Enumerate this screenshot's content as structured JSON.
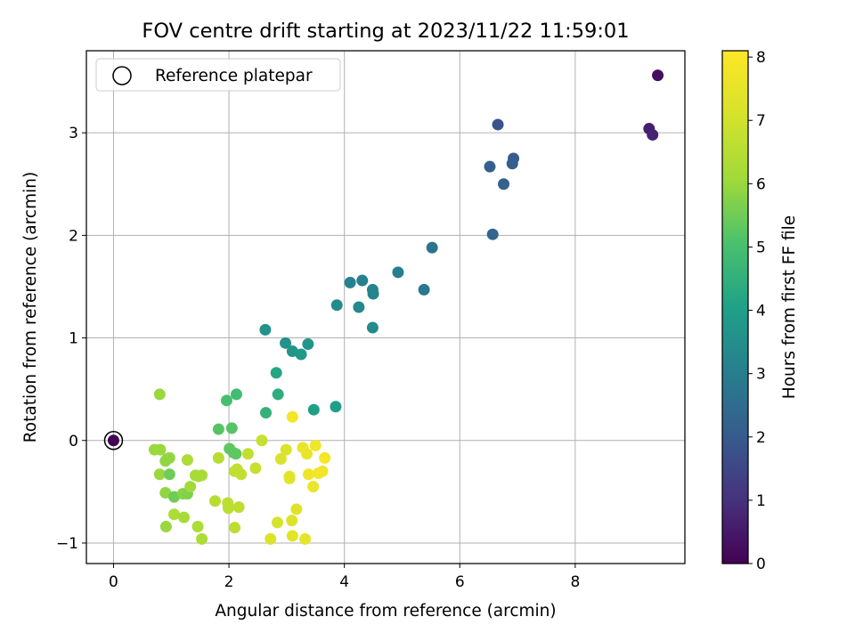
{
  "chart_data": {
    "type": "scatter",
    "title": "FOV centre drift starting at 2023/11/22 11:59:01",
    "xlabel": "Angular distance from reference (arcmin)",
    "ylabel": "Rotation from reference (arcmin)",
    "xlim": [
      -0.47,
      9.9
    ],
    "ylim": [
      -1.2,
      3.8
    ],
    "x_ticks": [
      0,
      2,
      4,
      6,
      8
    ],
    "y_ticks": [
      -1,
      0,
      1,
      2,
      3
    ],
    "x_tick_labels": [
      "0",
      "2",
      "4",
      "6",
      "8"
    ],
    "y_tick_labels": [
      "−1",
      "0",
      "1",
      "2",
      "3"
    ],
    "grid": true,
    "legend": {
      "placement": "top-left",
      "entries": [
        "Reference platepar"
      ]
    },
    "colorbar": {
      "label": "Hours from first FF file",
      "range": [
        0,
        8.1
      ],
      "ticks": [
        0,
        1,
        2,
        3,
        4,
        5,
        6,
        7,
        8
      ],
      "tick_labels": [
        "0",
        "1",
        "2",
        "3",
        "4",
        "5",
        "6",
        "7",
        "8"
      ],
      "colormap": "viridis"
    },
    "reference_point": {
      "x": 0,
      "y": 0,
      "hours": 0
    },
    "points": [
      {
        "x": 9.43,
        "y": 3.56,
        "hours": 0.3
      },
      {
        "x": 9.28,
        "y": 3.04,
        "hours": 0.6
      },
      {
        "x": 9.34,
        "y": 2.98,
        "hours": 0.7
      },
      {
        "x": 6.66,
        "y": 3.08,
        "hours": 1.8
      },
      {
        "x": 6.93,
        "y": 2.75,
        "hours": 2.0
      },
      {
        "x": 6.91,
        "y": 2.7,
        "hours": 2.1
      },
      {
        "x": 6.52,
        "y": 2.67,
        "hours": 2.1
      },
      {
        "x": 6.76,
        "y": 2.5,
        "hours": 2.2
      },
      {
        "x": 6.57,
        "y": 2.01,
        "hours": 2.3
      },
      {
        "x": 5.52,
        "y": 1.88,
        "hours": 2.7
      },
      {
        "x": 4.93,
        "y": 1.64,
        "hours": 3.0
      },
      {
        "x": 5.38,
        "y": 1.47,
        "hours": 2.8
      },
      {
        "x": 4.1,
        "y": 1.54,
        "hours": 3.1
      },
      {
        "x": 4.31,
        "y": 1.56,
        "hours": 3.1
      },
      {
        "x": 4.49,
        "y": 1.47,
        "hours": 3.2
      },
      {
        "x": 4.5,
        "y": 1.43,
        "hours": 3.2
      },
      {
        "x": 4.25,
        "y": 1.3,
        "hours": 3.3
      },
      {
        "x": 3.87,
        "y": 1.32,
        "hours": 3.4
      },
      {
        "x": 4.49,
        "y": 1.1,
        "hours": 3.4
      },
      {
        "x": 2.63,
        "y": 1.08,
        "hours": 3.6
      },
      {
        "x": 2.98,
        "y": 0.95,
        "hours": 3.6
      },
      {
        "x": 3.1,
        "y": 0.87,
        "hours": 3.7
      },
      {
        "x": 3.25,
        "y": 0.84,
        "hours": 3.8
      },
      {
        "x": 3.37,
        "y": 0.94,
        "hours": 3.7
      },
      {
        "x": 2.82,
        "y": 0.66,
        "hours": 4.2
      },
      {
        "x": 2.85,
        "y": 0.45,
        "hours": 4.4
      },
      {
        "x": 2.64,
        "y": 0.27,
        "hours": 4.6
      },
      {
        "x": 3.47,
        "y": 0.3,
        "hours": 4.0
      },
      {
        "x": 3.85,
        "y": 0.33,
        "hours": 4.0
      },
      {
        "x": 2.13,
        "y": 0.45,
        "hours": 4.9
      },
      {
        "x": 1.96,
        "y": 0.39,
        "hours": 5.0
      },
      {
        "x": 1.82,
        "y": 0.11,
        "hours": 5.2
      },
      {
        "x": 2.05,
        "y": 0.12,
        "hours": 5.2
      },
      {
        "x": 2.01,
        "y": -0.08,
        "hours": 5.3
      },
      {
        "x": 2.08,
        "y": -0.12,
        "hours": 5.3
      },
      {
        "x": 2.12,
        "y": -0.13,
        "hours": 5.3
      },
      {
        "x": 0.8,
        "y": 0.45,
        "hours": 6.0
      },
      {
        "x": 0.71,
        "y": -0.09,
        "hours": 6.0
      },
      {
        "x": 0.81,
        "y": -0.09,
        "hours": 6.0
      },
      {
        "x": 0.9,
        "y": -0.2,
        "hours": 5.9
      },
      {
        "x": 0.97,
        "y": -0.17,
        "hours": 5.9
      },
      {
        "x": 0.93,
        "y": -0.18,
        "hours": 5.9
      },
      {
        "x": 0.8,
        "y": -0.33,
        "hours": 6.0
      },
      {
        "x": 0.97,
        "y": -0.33,
        "hours": 5.5
      },
      {
        "x": 0.9,
        "y": -0.51,
        "hours": 5.9
      },
      {
        "x": 1.05,
        "y": -0.55,
        "hours": 5.5
      },
      {
        "x": 1.2,
        "y": -0.52,
        "hours": 5.8
      },
      {
        "x": 1.28,
        "y": -0.52,
        "hours": 5.7
      },
      {
        "x": 1.33,
        "y": -0.45,
        "hours": 6.1
      },
      {
        "x": 1.28,
        "y": -0.19,
        "hours": 6.3
      },
      {
        "x": 1.42,
        "y": -0.34,
        "hours": 6.2
      },
      {
        "x": 1.47,
        "y": -0.35,
        "hours": 6.2
      },
      {
        "x": 1.53,
        "y": -0.34,
        "hours": 6.2
      },
      {
        "x": 1.05,
        "y": -0.72,
        "hours": 6.3
      },
      {
        "x": 1.22,
        "y": -0.75,
        "hours": 6.2
      },
      {
        "x": 0.91,
        "y": -0.84,
        "hours": 6.0
      },
      {
        "x": 1.46,
        "y": -0.84,
        "hours": 6.3
      },
      {
        "x": 1.53,
        "y": -0.96,
        "hours": 6.3
      },
      {
        "x": 1.76,
        "y": -0.59,
        "hours": 6.5
      },
      {
        "x": 1.82,
        "y": -0.17,
        "hours": 6.5
      },
      {
        "x": 1.98,
        "y": -0.61,
        "hours": 6.6
      },
      {
        "x": 1.99,
        "y": -0.66,
        "hours": 6.6
      },
      {
        "x": 2.17,
        "y": -0.65,
        "hours": 6.6
      },
      {
        "x": 2.1,
        "y": -0.85,
        "hours": 6.6
      },
      {
        "x": 2.1,
        "y": -0.3,
        "hours": 6.6
      },
      {
        "x": 2.14,
        "y": -0.28,
        "hours": 6.7
      },
      {
        "x": 2.21,
        "y": -0.33,
        "hours": 6.7
      },
      {
        "x": 2.33,
        "y": -0.13,
        "hours": 6.7
      },
      {
        "x": 2.46,
        "y": -0.27,
        "hours": 6.8
      },
      {
        "x": 2.57,
        "y": 0.0,
        "hours": 6.8
      },
      {
        "x": 2.9,
        "y": -0.18,
        "hours": 7.2
      },
      {
        "x": 2.99,
        "y": -0.09,
        "hours": 7.2
      },
      {
        "x": 3.05,
        "y": -0.37,
        "hours": 7.4
      },
      {
        "x": 3.05,
        "y": -0.35,
        "hours": 7.4
      },
      {
        "x": 2.84,
        "y": -0.8,
        "hours": 7.1
      },
      {
        "x": 2.72,
        "y": -0.96,
        "hours": 7.2
      },
      {
        "x": 3.09,
        "y": -0.78,
        "hours": 7.3
      },
      {
        "x": 3.17,
        "y": -0.67,
        "hours": 7.3
      },
      {
        "x": 3.1,
        "y": -0.93,
        "hours": 7.4
      },
      {
        "x": 3.32,
        "y": -0.96,
        "hours": 7.5
      },
      {
        "x": 3.1,
        "y": 0.23,
        "hours": 7.9
      },
      {
        "x": 3.28,
        "y": -0.07,
        "hours": 7.6
      },
      {
        "x": 3.35,
        "y": -0.13,
        "hours": 7.6
      },
      {
        "x": 3.38,
        "y": -0.33,
        "hours": 7.7
      },
      {
        "x": 3.46,
        "y": -0.45,
        "hours": 7.6
      },
      {
        "x": 3.5,
        "y": -0.05,
        "hours": 7.8
      },
      {
        "x": 3.55,
        "y": -0.32,
        "hours": 7.8
      },
      {
        "x": 3.62,
        "y": -0.3,
        "hours": 7.8
      },
      {
        "x": 3.66,
        "y": -0.17,
        "hours": 7.9
      }
    ]
  }
}
